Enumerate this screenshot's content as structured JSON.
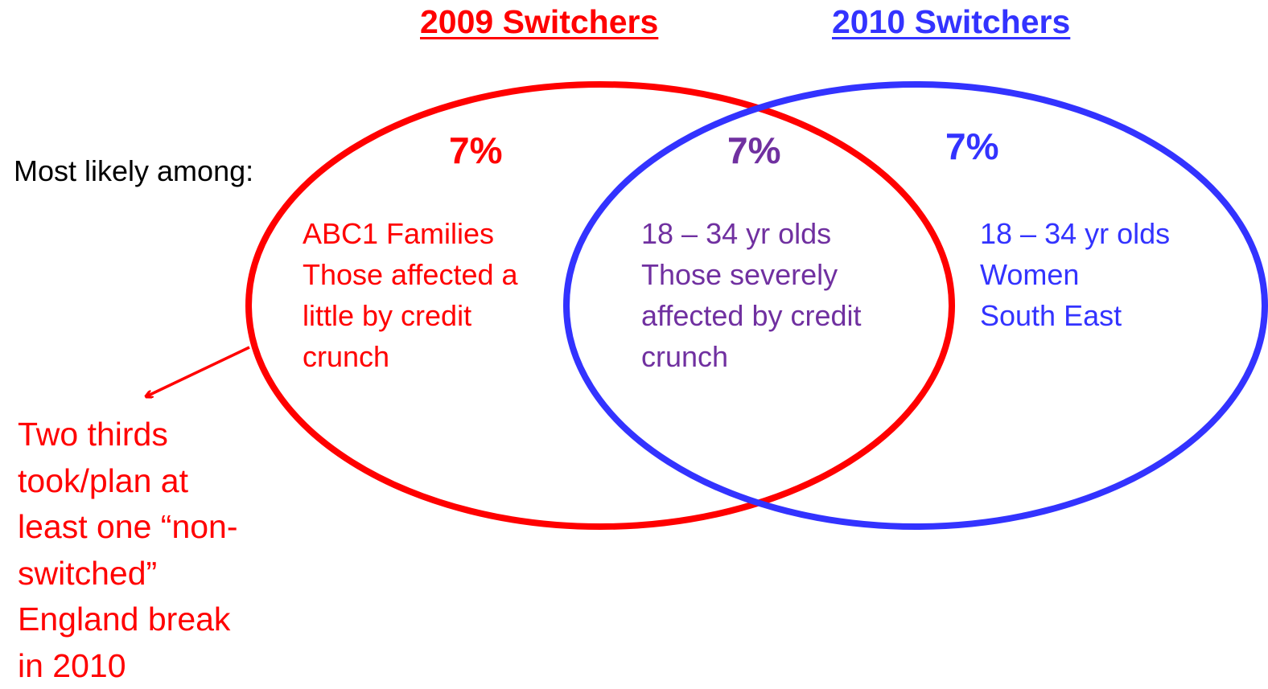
{
  "headings": {
    "left": "2009 Switchers",
    "right": "2010 Switchers"
  },
  "percentages": {
    "left": "7%",
    "overlap": "7%",
    "right": "7%"
  },
  "row_label": "Most likely among:",
  "regions": {
    "left": [
      "ABC1 Families",
      "Those affected a",
      "little by credit",
      "crunch"
    ],
    "overlap": [
      "18 – 34 yr olds",
      "Those severely",
      "affected by credit",
      "crunch"
    ],
    "right": [
      "18 – 34 yr olds",
      "Women",
      "South East"
    ]
  },
  "callout": [
    "Two thirds",
    "took/plan at",
    "least one “non-",
    "switched”",
    "England break",
    "in 2010"
  ],
  "colors": {
    "left_set": "#ff0000",
    "right_set": "#3333ff",
    "overlap_text": "#7030a0"
  }
}
